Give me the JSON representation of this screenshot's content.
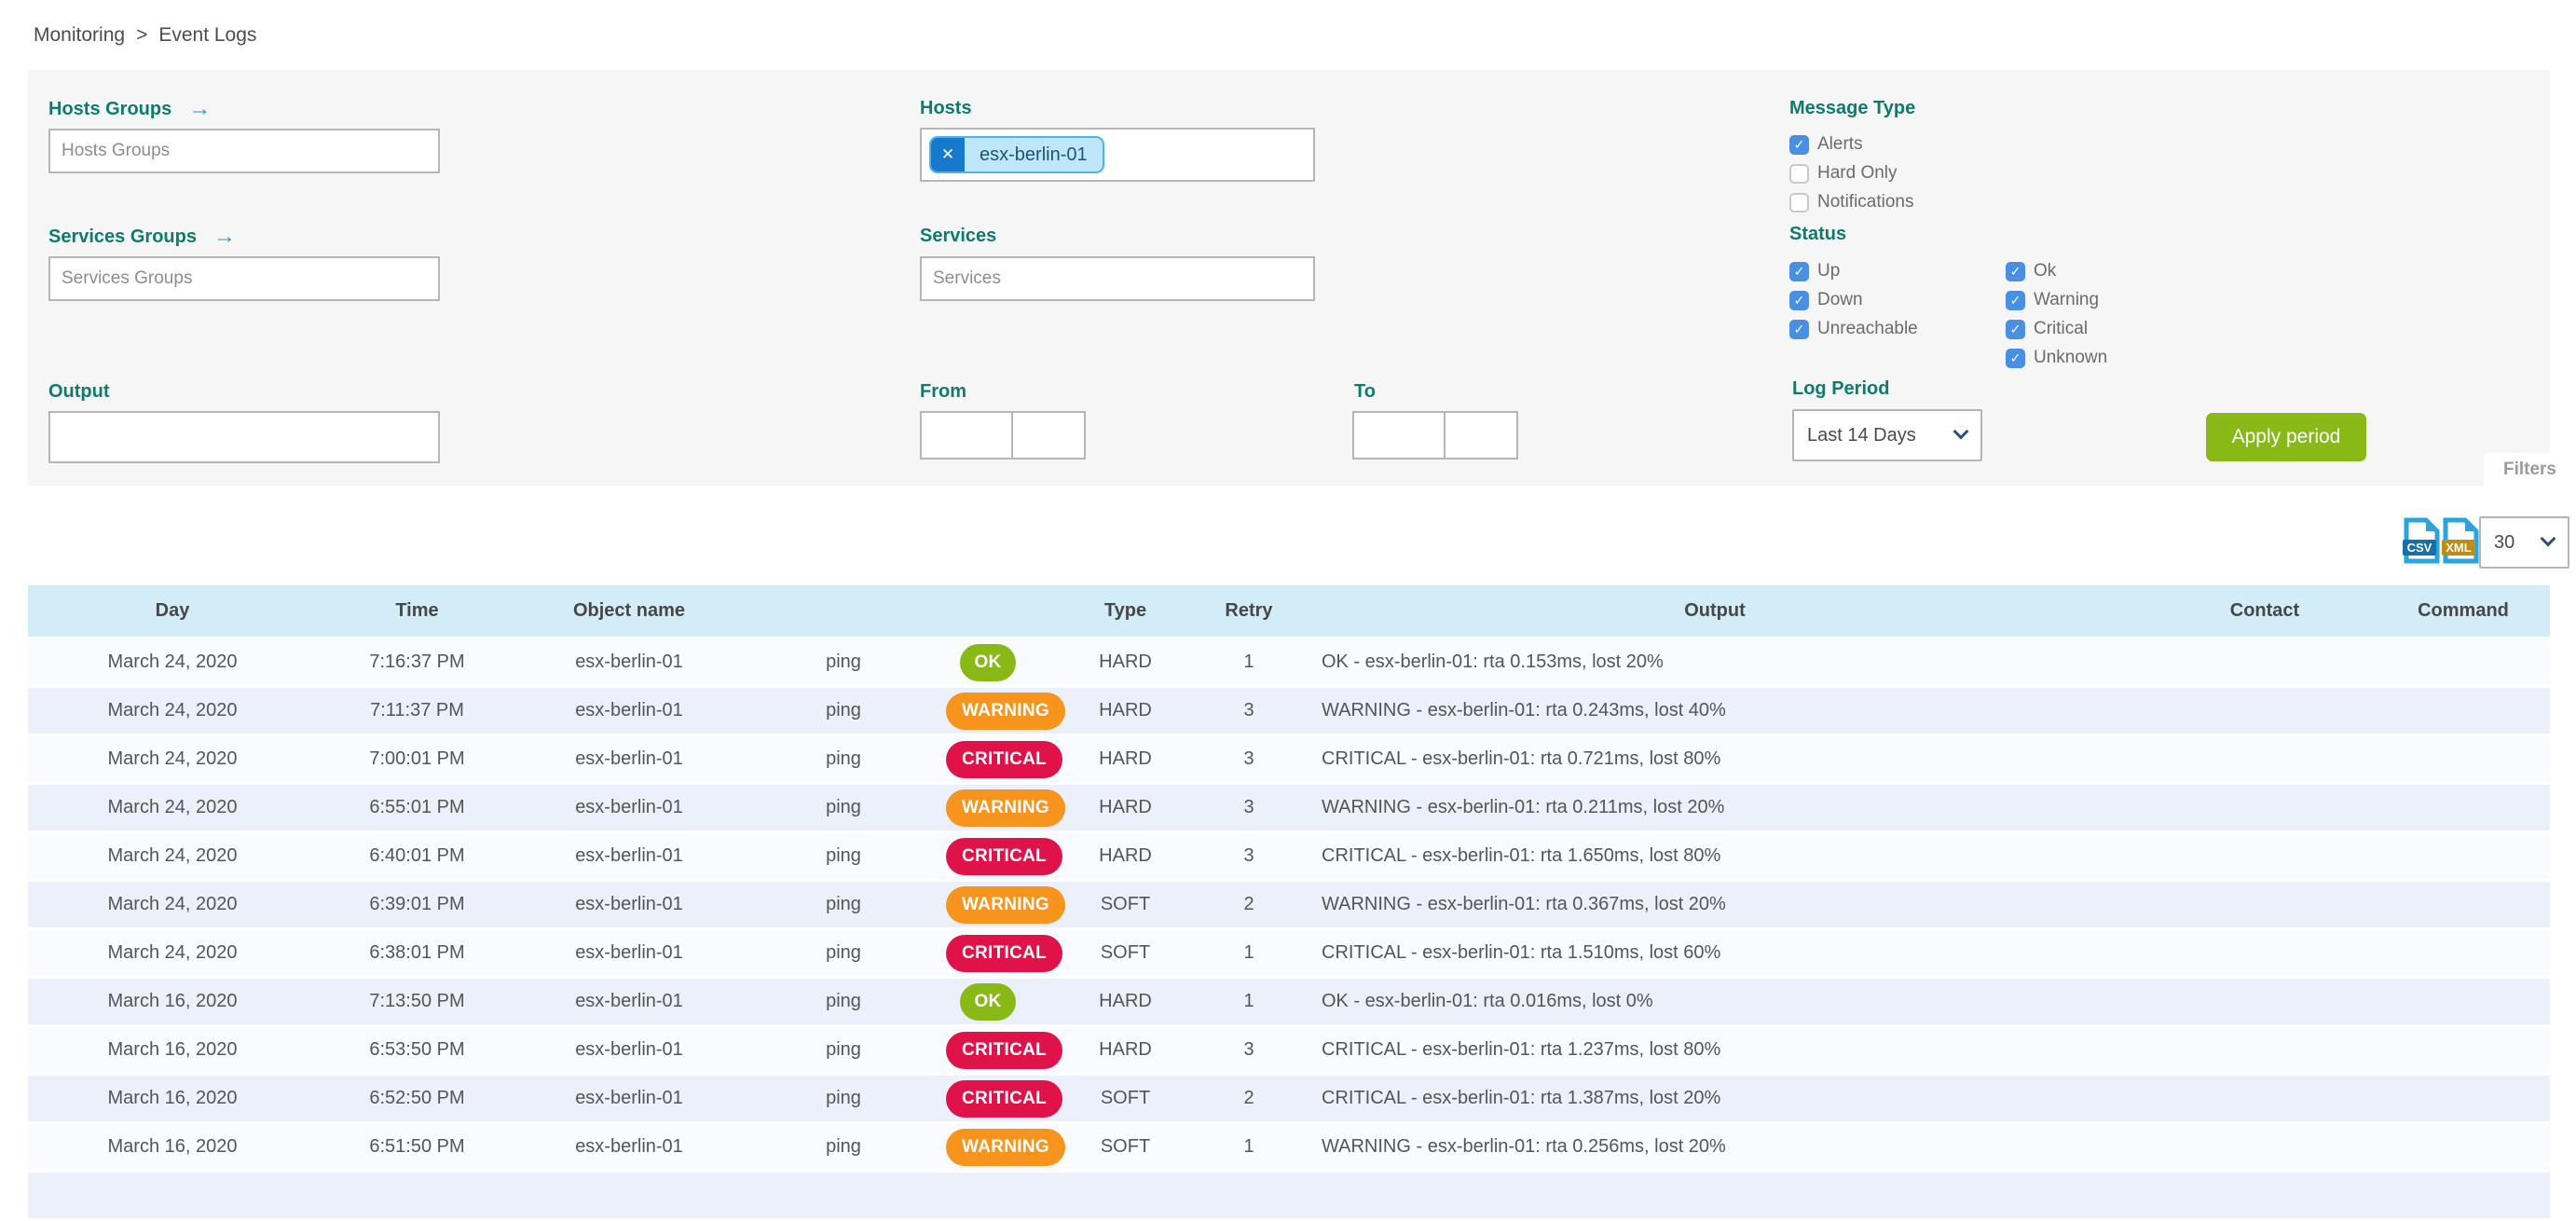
{
  "breadcrumb": {
    "items": [
      "Monitoring",
      "Event Logs"
    ],
    "separator": ">"
  },
  "panel": {
    "hosts_groups": {
      "label": "Hosts Groups",
      "placeholder": "Hosts Groups"
    },
    "services_groups": {
      "label": "Services Groups",
      "placeholder": "Services Groups"
    },
    "hosts": {
      "label": "Hosts",
      "chips": [
        "esx-berlin-01"
      ],
      "remove_icon": "✕"
    },
    "services": {
      "label": "Services",
      "placeholder": "Services"
    },
    "output": {
      "label": "Output",
      "value": ""
    },
    "from": {
      "label": "From",
      "date_value": "",
      "time_value": ""
    },
    "to": {
      "label": "To",
      "date_value": "",
      "time_value": ""
    },
    "message_type": {
      "label": "Message Type",
      "options": [
        {
          "label": "Alerts",
          "checked": true
        },
        {
          "label": "Hard Only",
          "checked": false
        },
        {
          "label": "Notifications",
          "checked": false
        }
      ]
    },
    "status": {
      "label": "Status",
      "col1": [
        {
          "label": "Up",
          "checked": true
        },
        {
          "label": "Down",
          "checked": true
        },
        {
          "label": "Unreachable",
          "checked": true
        }
      ],
      "col2": [
        {
          "label": "Ok",
          "checked": true
        },
        {
          "label": "Warning",
          "checked": true
        },
        {
          "label": "Critical",
          "checked": true
        },
        {
          "label": "Unknown",
          "checked": true
        }
      ]
    },
    "log_period": {
      "label": "Log Period",
      "selected": "Last 14 Days"
    },
    "apply_button_label": "Apply period",
    "filters_tab_label": "Filters"
  },
  "toolbar": {
    "csv_icon_label": "CSV",
    "xml_icon_label": "XML",
    "page_size_selected": "30"
  },
  "table": {
    "headers": {
      "day": "Day",
      "time": "Time",
      "object": "Object name",
      "service": "",
      "status": "",
      "type": "Type",
      "retry": "Retry",
      "output": "Output",
      "contact": "Contact",
      "command": "Command"
    },
    "rows": [
      {
        "day": "March 24, 2020",
        "time": "7:16:37 PM",
        "object": "esx-berlin-01",
        "service": "ping",
        "status": "OK",
        "type": "HARD",
        "retry": "1",
        "output": "OK - esx-berlin-01: rta 0.153ms, lost 20%",
        "contact": "",
        "command": ""
      },
      {
        "day": "March 24, 2020",
        "time": "7:11:37 PM",
        "object": "esx-berlin-01",
        "service": "ping",
        "status": "WARNING",
        "type": "HARD",
        "retry": "3",
        "output": "WARNING - esx-berlin-01: rta 0.243ms, lost 40%",
        "contact": "",
        "command": ""
      },
      {
        "day": "March 24, 2020",
        "time": "7:00:01 PM",
        "object": "esx-berlin-01",
        "service": "ping",
        "status": "CRITICAL",
        "type": "HARD",
        "retry": "3",
        "output": "CRITICAL - esx-berlin-01: rta 0.721ms, lost 80%",
        "contact": "",
        "command": ""
      },
      {
        "day": "March 24, 2020",
        "time": "6:55:01 PM",
        "object": "esx-berlin-01",
        "service": "ping",
        "status": "WARNING",
        "type": "HARD",
        "retry": "3",
        "output": "WARNING - esx-berlin-01: rta 0.211ms, lost 20%",
        "contact": "",
        "command": ""
      },
      {
        "day": "March 24, 2020",
        "time": "6:40:01 PM",
        "object": "esx-berlin-01",
        "service": "ping",
        "status": "CRITICAL",
        "type": "HARD",
        "retry": "3",
        "output": "CRITICAL - esx-berlin-01: rta 1.650ms, lost 80%",
        "contact": "",
        "command": ""
      },
      {
        "day": "March 24, 2020",
        "time": "6:39:01 PM",
        "object": "esx-berlin-01",
        "service": "ping",
        "status": "WARNING",
        "type": "SOFT",
        "retry": "2",
        "output": "WARNING - esx-berlin-01: rta 0.367ms, lost 20%",
        "contact": "",
        "command": ""
      },
      {
        "day": "March 24, 2020",
        "time": "6:38:01 PM",
        "object": "esx-berlin-01",
        "service": "ping",
        "status": "CRITICAL",
        "type": "SOFT",
        "retry": "1",
        "output": "CRITICAL - esx-berlin-01: rta 1.510ms, lost 60%",
        "contact": "",
        "command": ""
      },
      {
        "day": "March 16, 2020",
        "time": "7:13:50 PM",
        "object": "esx-berlin-01",
        "service": "ping",
        "status": "OK",
        "type": "HARD",
        "retry": "1",
        "output": "OK - esx-berlin-01: rta 0.016ms, lost 0%",
        "contact": "",
        "command": ""
      },
      {
        "day": "March 16, 2020",
        "time": "6:53:50 PM",
        "object": "esx-berlin-01",
        "service": "ping",
        "status": "CRITICAL",
        "type": "HARD",
        "retry": "3",
        "output": "CRITICAL - esx-berlin-01: rta 1.237ms, lost 80%",
        "contact": "",
        "command": ""
      },
      {
        "day": "March 16, 2020",
        "time": "6:52:50 PM",
        "object": "esx-berlin-01",
        "service": "ping",
        "status": "CRITICAL",
        "type": "SOFT",
        "retry": "2",
        "output": "CRITICAL - esx-berlin-01: rta 1.387ms, lost 20%",
        "contact": "",
        "command": ""
      },
      {
        "day": "March 16, 2020",
        "time": "6:51:50 PM",
        "object": "esx-berlin-01",
        "service": "ping",
        "status": "WARNING",
        "type": "SOFT",
        "retry": "1",
        "output": "WARNING - esx-berlin-01: rta 0.256ms, lost 20%",
        "contact": "",
        "command": ""
      }
    ]
  },
  "colors": {
    "accent_teal": "#0d7b70",
    "checkbox_blue": "#4a90e2",
    "apply_green": "#88b917",
    "status_ok": "#88b917",
    "status_warning": "#f7941d",
    "status_critical": "#e0124a",
    "chip_blue": "#1779cc",
    "chip_light": "#bfe7fb",
    "header_blue": "#d2ecf8"
  }
}
